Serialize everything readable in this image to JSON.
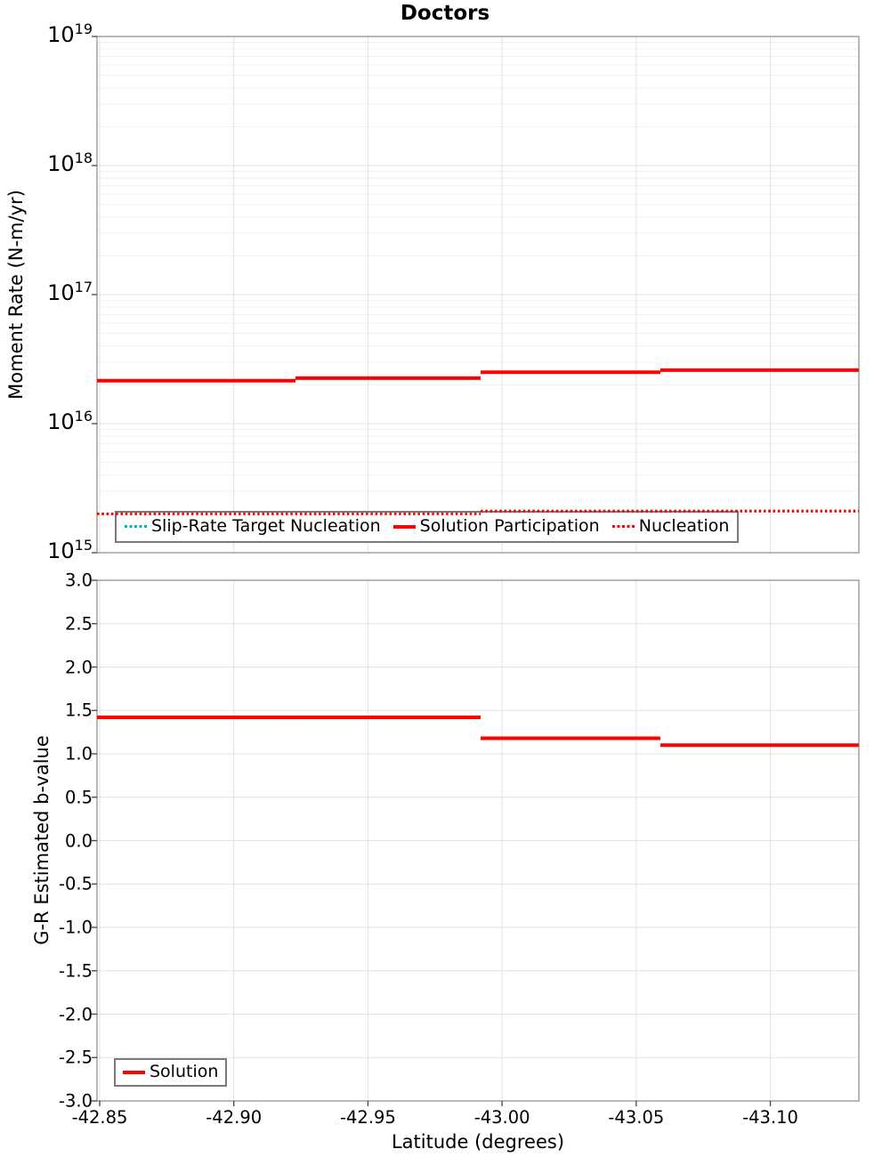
{
  "chart_data": [
    {
      "type": "line",
      "title": "Doctors",
      "ylabel": "Moment Rate (N-m/yr)",
      "xlabel": "Latitude (degrees)",
      "yscale": "log",
      "ylim": [
        1000000000000000.0,
        1e+19
      ],
      "xlim": [
        -42.849,
        -43.133
      ],
      "x_inverted": true,
      "grid": true,
      "legend_position": "lower-left",
      "ytick_base": "10",
      "ytick_exponents": [
        19,
        18,
        17,
        16,
        15
      ],
      "xticks": [
        -42.85,
        -42.9,
        -42.95,
        -43.0,
        -43.05,
        -43.1
      ],
      "xtick_labels": [
        "-42.85",
        "-42.90",
        "-42.95",
        "-43.00",
        "-43.05",
        "-43.10"
      ],
      "series": [
        {
          "name": "Slip-Rate Target Nucleation",
          "color": "#00B4B8",
          "style": "dotted",
          "overlay": false,
          "steps": [
            {
              "x0": -42.849,
              "x1": -42.992,
              "y": 2000000000000000.0
            },
            {
              "x0": -42.992,
              "x1": -43.133,
              "y": 2100000000000000.0
            }
          ]
        },
        {
          "name": "Solution Participation",
          "color": "#FF0000",
          "style": "solid",
          "overlay": true,
          "steps": [
            {
              "x0": -42.849,
              "x1": -42.923,
              "y": 2.15e+16
            },
            {
              "x0": -42.923,
              "x1": -42.992,
              "y": 2.25e+16
            },
            {
              "x0": -42.992,
              "x1": -43.059,
              "y": 2.5e+16
            },
            {
              "x0": -43.059,
              "x1": -43.133,
              "y": 2.6e+16
            }
          ]
        },
        {
          "name": "Nucleation",
          "color": "#FF0000",
          "style": "dotted",
          "overlay": true,
          "steps": [
            {
              "x0": -42.849,
              "x1": -42.992,
              "y": 2000000000000000.0
            },
            {
              "x0": -42.992,
              "x1": -43.133,
              "y": 2100000000000000.0
            }
          ]
        }
      ]
    },
    {
      "type": "line",
      "title": "",
      "ylabel": "G-R Estimated b-value",
      "xlabel": "Latitude (degrees)",
      "yscale": "linear",
      "ylim": [
        -3.0,
        3.0
      ],
      "xlim": [
        -42.849,
        -43.133
      ],
      "x_inverted": true,
      "grid": true,
      "legend_position": "lower-left",
      "yticks": [
        3.0,
        2.5,
        2.0,
        1.5,
        1.0,
        0.5,
        0.0,
        -0.5,
        -1.0,
        -1.5,
        -2.0,
        -2.5,
        -3.0
      ],
      "ytick_labels": [
        "3.0",
        "2.5",
        "2.0",
        "1.5",
        "1.0",
        "0.5",
        "0.0",
        "-0.5",
        "-1.0",
        "-1.5",
        "-2.0",
        "-2.5",
        "-3.0"
      ],
      "xticks": [
        -42.85,
        -42.9,
        -42.95,
        -43.0,
        -43.05,
        -43.1
      ],
      "xtick_labels": [
        "-42.85",
        "-42.90",
        "-42.95",
        "-43.00",
        "-43.05",
        "-43.10"
      ],
      "series": [
        {
          "name": "Solution",
          "color": "#FF0000",
          "style": "solid",
          "overlay": true,
          "steps": [
            {
              "x0": -42.849,
              "x1": -42.923,
              "y": 1.42
            },
            {
              "x0": -42.923,
              "x1": -42.992,
              "y": 1.42
            },
            {
              "x0": -42.992,
              "x1": -43.059,
              "y": 1.18
            },
            {
              "x0": -43.059,
              "x1": -43.133,
              "y": 1.1
            }
          ]
        }
      ]
    }
  ],
  "colors": {
    "grid_major": "#e2e2e2",
    "grid_minor": "#f0f0f0",
    "axis_border": "#9a9a9a",
    "tick_mark": "#444444"
  }
}
